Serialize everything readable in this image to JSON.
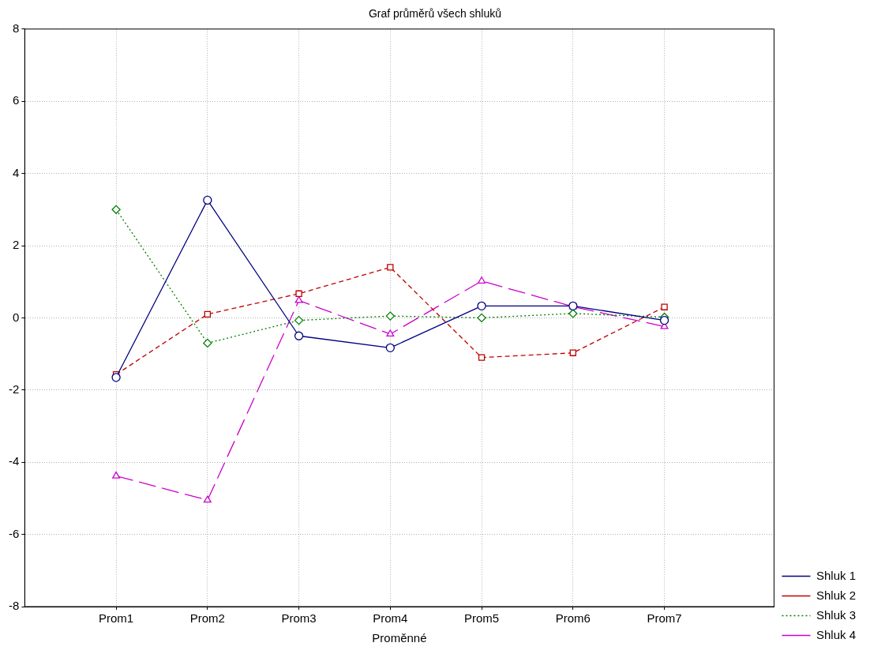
{
  "chart_data": {
    "type": "line",
    "title": "Graf průměrů všech shluků",
    "xlabel": "Proměnné",
    "categories": [
      "Prom1",
      "Prom2",
      "Prom3",
      "Prom4",
      "Prom5",
      "Prom6",
      "Prom7"
    ],
    "series": [
      {
        "name": "Shluk 1",
        "color": "#000080",
        "marker": "circle",
        "line_style": "solid",
        "values": [
          -1.65,
          3.26,
          -0.5,
          -0.83,
          0.33,
          0.33,
          -0.07
        ]
      },
      {
        "name": "Shluk 2",
        "color": "#c00000",
        "marker": "square",
        "line_style": "dashed",
        "values": [
          -1.57,
          0.1,
          0.67,
          1.4,
          -1.1,
          -0.97,
          0.3
        ]
      },
      {
        "name": "Shluk 3",
        "color": "#008000",
        "marker": "diamond",
        "line_style": "dotted",
        "values": [
          3.0,
          -0.7,
          -0.07,
          0.05,
          0,
          0.12,
          0.02
        ]
      },
      {
        "name": "Shluk 4",
        "color": "#cc00cc",
        "marker": "triangle",
        "line_style": "longdash",
        "values": [
          -4.38,
          -5.05,
          0.48,
          -0.45,
          1.02,
          0.31,
          -0.24
        ]
      }
    ],
    "ylim": [
      -8,
      8
    ],
    "yticks": [
      -8,
      -6,
      -4,
      -2,
      0,
      2,
      4,
      6,
      8
    ],
    "grid": true,
    "legend": "bottom right"
  }
}
